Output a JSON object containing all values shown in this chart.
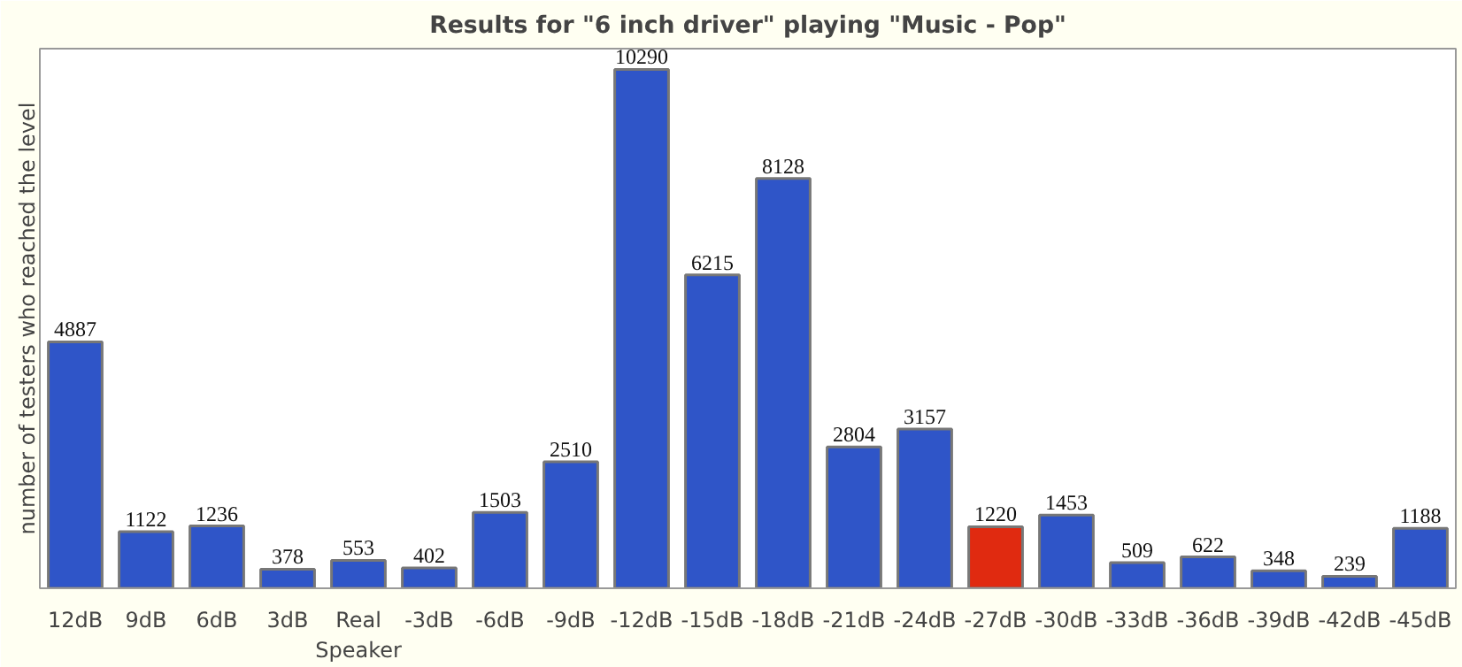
{
  "chart_data": {
    "type": "bar",
    "title": "Results for \"6 inch driver\" playing \"Music - Pop\"",
    "ylabel": "number of testers who reached the level",
    "categories": [
      "12dB",
      "9dB",
      "6dB",
      "3dB",
      "Real Speaker",
      "-3dB",
      "-6dB",
      "-9dB",
      "-12dB",
      "-15dB",
      "-18dB",
      "-21dB",
      "-24dB",
      "-27dB",
      "-30dB",
      "-33dB",
      "-36dB",
      "-39dB",
      "-42dB",
      "-45dB"
    ],
    "values": [
      4887,
      1122,
      1236,
      378,
      553,
      402,
      1503,
      2510,
      10290,
      6215,
      8128,
      2804,
      3157,
      1220,
      1453,
      509,
      622,
      348,
      239,
      1188
    ],
    "colors": [
      "#2f55c8",
      "#2f55c8",
      "#2f55c8",
      "#2f55c8",
      "#2f55c8",
      "#2f55c8",
      "#2f55c8",
      "#2f55c8",
      "#2f55c8",
      "#2f55c8",
      "#2f55c8",
      "#2f55c8",
      "#2f55c8",
      "#e02a10",
      "#2f55c8",
      "#2f55c8",
      "#2f55c8",
      "#2f55c8",
      "#2f55c8",
      "#2f55c8"
    ],
    "data_labels": true,
    "grid": false
  }
}
